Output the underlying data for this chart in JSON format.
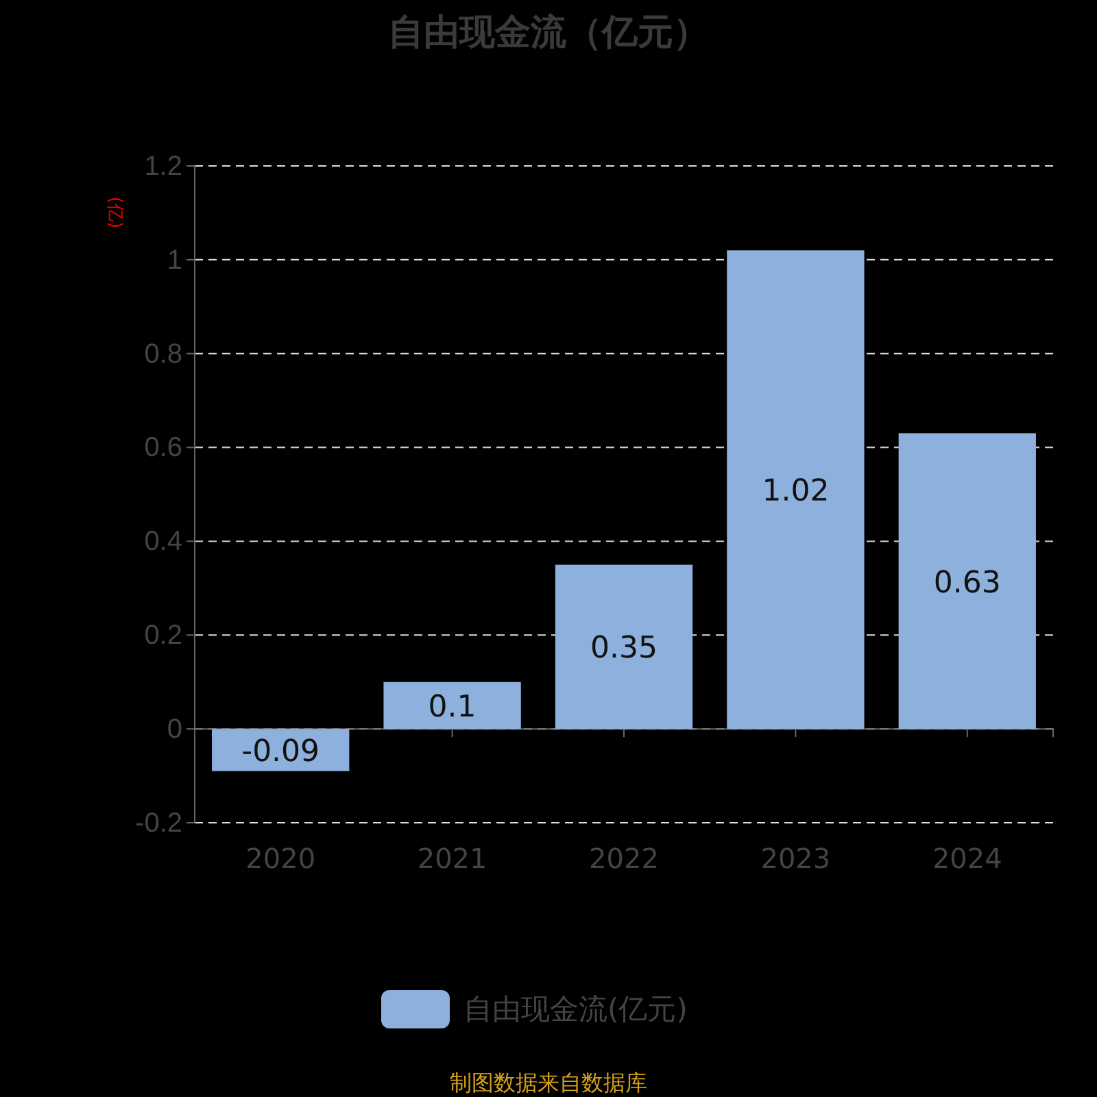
{
  "chart_data": {
    "type": "bar",
    "title": "自由现金流（亿元）",
    "ylabel": "(亿)",
    "categories": [
      "2020",
      "2021",
      "2022",
      "2023",
      "2024"
    ],
    "series": [
      {
        "name": "自由现金流(亿元)",
        "color": "#8eb0dc",
        "values": [
          -0.09,
          0.1,
          0.35,
          1.02,
          0.63
        ]
      }
    ],
    "ylim": [
      -0.2,
      1.2
    ],
    "yticks": [
      -0.2,
      0,
      0.2,
      0.4,
      0.6,
      0.8,
      1,
      1.2
    ],
    "grid": "y",
    "legend": "bottom",
    "data_labels": true,
    "annotations": [
      "制图数据来自数据库"
    ]
  }
}
